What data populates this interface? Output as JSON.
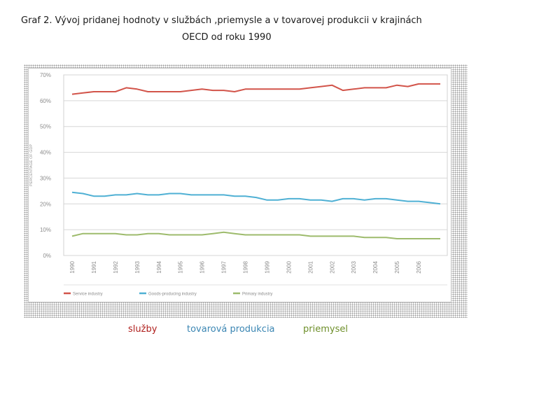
{
  "header": {
    "title_line1": "Graf 2. Vývoj pridanej hodnoty v službách ,priemysle a v tovarovej produkcii v krajinách",
    "title_line2": "OECD od roku 1990"
  },
  "bottom_legend": {
    "sluzby": "služby",
    "tovarova": "tovarová produkcia",
    "priemysel": "priemysel"
  },
  "colors": {
    "service": "#d2544a",
    "goods": "#4fb0d4",
    "primary": "#9dbb6c"
  },
  "chart_data": {
    "type": "line",
    "ylabel": "PERCENTAGE OF GDP",
    "ylim": [
      0,
      70
    ],
    "yticks": [
      "0%",
      "10%",
      "20%",
      "30%",
      "40%",
      "50%",
      "60%",
      "70%"
    ],
    "xticks": [
      "1990",
      "1991",
      "1992",
      "1993",
      "1994",
      "1995",
      "1996",
      "1997",
      "1998",
      "1999",
      "2000",
      "2001",
      "2002",
      "2003",
      "2004",
      "2005",
      "2006"
    ],
    "xlim": [
      1990,
      2007
    ],
    "grid": true,
    "legend_position": "bottom",
    "series": [
      {
        "name": "Service industry",
        "color": "#d2544a",
        "x": [
          1990,
          1990.5,
          1991,
          1991.5,
          1992,
          1992.5,
          1993,
          1993.5,
          1994,
          1994.5,
          1995,
          1995.5,
          1996,
          1996.5,
          1997,
          1997.5,
          1998,
          1998.5,
          1999,
          1999.5,
          2000,
          2000.5,
          2001,
          2001.5,
          2002,
          2002.5,
          2003,
          2003.5,
          2004,
          2004.5,
          2005,
          2005.5,
          2006,
          2006.5,
          2007
        ],
        "values": [
          62.5,
          63,
          63.5,
          63.5,
          63.5,
          65,
          64.5,
          63.5,
          63.5,
          63.5,
          63.5,
          64,
          64.5,
          64,
          64,
          63.5,
          64.5,
          64.5,
          64.5,
          64.5,
          64.5,
          64.5,
          65,
          65.5,
          66,
          64,
          64.5,
          65,
          65,
          65,
          66,
          65.5,
          66.5,
          66.5,
          66.5
        ]
      },
      {
        "name": "Goods-producing industry",
        "color": "#4fb0d4",
        "x": [
          1990,
          1990.5,
          1991,
          1991.5,
          1992,
          1992.5,
          1993,
          1993.5,
          1994,
          1994.5,
          1995,
          1995.5,
          1996,
          1996.5,
          1997,
          1997.5,
          1998,
          1998.5,
          1999,
          1999.5,
          2000,
          2000.5,
          2001,
          2001.5,
          2002,
          2002.5,
          2003,
          2003.5,
          2004,
          2004.5,
          2005,
          2005.5,
          2006,
          2006.5,
          2007
        ],
        "values": [
          24.5,
          24,
          23,
          23,
          23.5,
          23.5,
          24,
          23.5,
          23.5,
          24,
          24,
          23.5,
          23.5,
          23.5,
          23.5,
          23,
          23,
          22.5,
          21.5,
          21.5,
          22,
          22,
          21.5,
          21.5,
          21,
          22,
          22,
          21.5,
          22,
          22,
          21.5,
          21,
          21,
          20.5,
          20
        ]
      },
      {
        "name": "Primary industry",
        "color": "#9dbb6c",
        "x": [
          1990,
          1990.5,
          1991,
          1991.5,
          1992,
          1992.5,
          1993,
          1993.5,
          1994,
          1994.5,
          1995,
          1995.5,
          1996,
          1996.5,
          1997,
          1997.5,
          1998,
          1998.5,
          1999,
          1999.5,
          2000,
          2000.5,
          2001,
          2001.5,
          2002,
          2002.5,
          2003,
          2003.5,
          2004,
          2004.5,
          2005,
          2005.5,
          2006,
          2006.5,
          2007
        ],
        "values": [
          7.5,
          8.5,
          8.5,
          8.5,
          8.5,
          8,
          8,
          8.5,
          8.5,
          8,
          8,
          8,
          8,
          8.5,
          9,
          8.5,
          8,
          8,
          8,
          8,
          8,
          8,
          7.5,
          7.5,
          7.5,
          7.5,
          7.5,
          7,
          7,
          7,
          6.5,
          6.5,
          6.5,
          6.5,
          6.5
        ]
      }
    ]
  }
}
